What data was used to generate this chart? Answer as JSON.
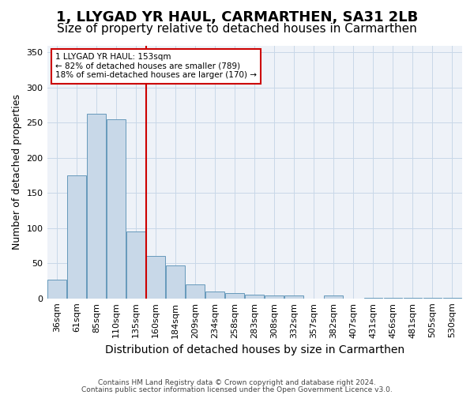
{
  "title": "1, LLYGAD YR HAUL, CARMARTHEN, SA31 2LB",
  "subtitle": "Size of property relative to detached houses in Carmarthen",
  "xlabel": "Distribution of detached houses by size in Carmarthen",
  "ylabel": "Number of detached properties",
  "categories": [
    "36sqm",
    "61sqm",
    "85sqm",
    "110sqm",
    "135sqm",
    "160sqm",
    "184sqm",
    "209sqm",
    "234sqm",
    "258sqm",
    "283sqm",
    "308sqm",
    "332sqm",
    "357sqm",
    "382sqm",
    "407sqm",
    "431sqm",
    "456sqm",
    "481sqm",
    "505sqm",
    "530sqm"
  ],
  "values": [
    27,
    175,
    263,
    255,
    95,
    60,
    47,
    20,
    10,
    8,
    5,
    4,
    4,
    0,
    4,
    0,
    1,
    1,
    1,
    1,
    1
  ],
  "bar_color": "#c8d8e8",
  "bar_edge_color": "#6699bb",
  "grid_color": "#c8d8e8",
  "background_color": "#eef2f8",
  "vline_color": "#cc0000",
  "ylim": [
    0,
    360
  ],
  "yticks": [
    0,
    50,
    100,
    150,
    200,
    250,
    300,
    350
  ],
  "annotation_line1": "1 LLYGAD YR HAUL: 153sqm",
  "annotation_line2": "← 82% of detached houses are smaller (789)",
  "annotation_line3": "18% of semi-detached houses are larger (170) →",
  "footer1": "Contains HM Land Registry data © Crown copyright and database right 2024.",
  "footer2": "Contains public sector information licensed under the Open Government Licence v3.0.",
  "title_fontsize": 13,
  "subtitle_fontsize": 11,
  "tick_fontsize": 8,
  "ylabel_fontsize": 9,
  "xlabel_fontsize": 10
}
